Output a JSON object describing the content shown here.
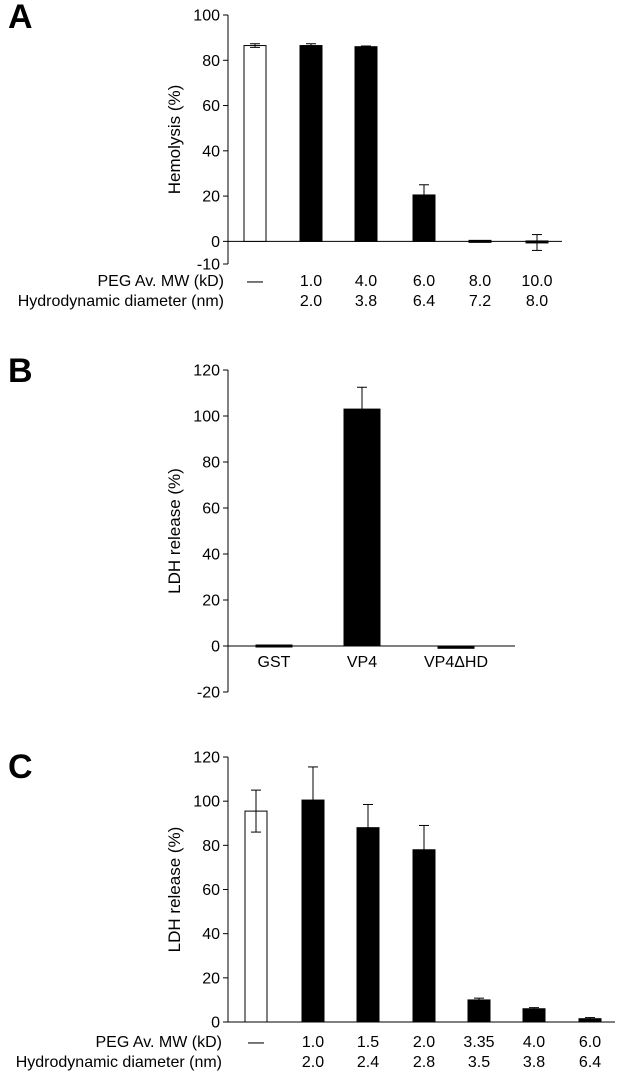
{
  "chart_data": [
    {
      "panel": "A",
      "type": "bar",
      "ylabel": "Hemolysis (%)",
      "ylim": [
        -10,
        100
      ],
      "yticks": [
        -10,
        0,
        20,
        40,
        60,
        80,
        100
      ],
      "ytick_labels": [
        "-10",
        "0",
        "20",
        "40",
        "60",
        "80",
        "100"
      ],
      "values": [
        86.5,
        86.5,
        86,
        20.5,
        0,
        -0.5
      ],
      "errors": [
        0.8,
        0.8,
        0.3,
        4.5,
        0.3,
        3.5
      ],
      "bar_fill": [
        "white",
        "black",
        "black",
        "black",
        "black",
        "black"
      ],
      "rows": [
        {
          "label": "PEG Av. MW (kD)",
          "values": [
            "—",
            "1.0",
            "4.0",
            "6.0",
            "8.0",
            "10.0"
          ]
        },
        {
          "label": "Hydrodynamic diameter (nm)",
          "values": [
            "",
            "2.0",
            "3.8",
            "6.4",
            "7.2",
            "8.0"
          ]
        }
      ]
    },
    {
      "panel": "B",
      "type": "bar",
      "ylabel": "LDH release (%)",
      "ylim": [
        -20,
        120
      ],
      "yticks": [
        -20,
        0,
        20,
        40,
        60,
        80,
        100,
        120
      ],
      "ytick_labels": [
        "-20",
        "0",
        "20",
        "40",
        "60",
        "80",
        "100",
        "120"
      ],
      "categories": [
        "GST",
        "VP4",
        "VP4ΔHD"
      ],
      "values": [
        0,
        103,
        -1
      ],
      "errors": [
        0,
        9.5,
        0
      ],
      "bar_fill": [
        "black",
        "black",
        "black"
      ]
    },
    {
      "panel": "C",
      "type": "bar",
      "ylabel": "LDH release (%)",
      "ylim": [
        0,
        120
      ],
      "yticks": [
        0,
        20,
        40,
        60,
        80,
        100,
        120
      ],
      "ytick_labels": [
        "0",
        "20",
        "40",
        "60",
        "80",
        "100",
        "120"
      ],
      "values": [
        95.5,
        100.5,
        88,
        78,
        10,
        6,
        1.5
      ],
      "errors": [
        9.5,
        15,
        10.5,
        11,
        0.8,
        0.5,
        0.5
      ],
      "bar_fill": [
        "white",
        "black",
        "black",
        "black",
        "black",
        "black",
        "black"
      ],
      "rows": [
        {
          "label": "PEG Av. MW (kD)",
          "values": [
            "—",
            "1.0",
            "1.5",
            "2.0",
            "3.35",
            "4.0",
            "6.0"
          ]
        },
        {
          "label": "Hydrodynamic diameter (nm)",
          "values": [
            "",
            "2.0",
            "2.4",
            "2.8",
            "3.5",
            "3.8",
            "6.4"
          ]
        }
      ]
    }
  ]
}
